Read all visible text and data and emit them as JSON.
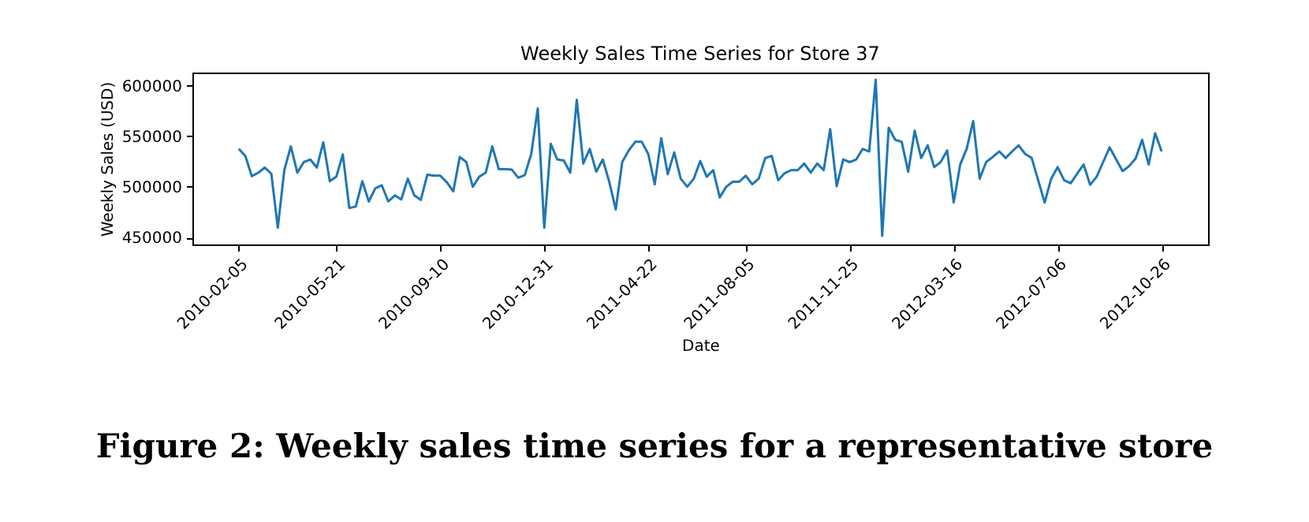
{
  "chart_data": {
    "type": "line",
    "title": "Weekly Sales Time Series for Store 37",
    "xlabel": "Date",
    "ylabel": "Weekly Sales (USD)",
    "annotations": [
      "Figure 2: Weekly sales time series for a representative store"
    ],
    "x": [
      "2010-02-05",
      "2010-02-12",
      "2010-02-19",
      "2010-02-26",
      "2010-03-05",
      "2010-03-12",
      "2010-03-19",
      "2010-03-26",
      "2010-04-02",
      "2010-04-09",
      "2010-04-16",
      "2010-04-23",
      "2010-04-30",
      "2010-05-07",
      "2010-05-14",
      "2010-05-21",
      "2010-05-28",
      "2010-06-04",
      "2010-06-11",
      "2010-06-18",
      "2010-06-25",
      "2010-07-02",
      "2010-07-09",
      "2010-07-16",
      "2010-07-23",
      "2010-07-30",
      "2010-08-06",
      "2010-08-13",
      "2010-08-20",
      "2010-08-27",
      "2010-09-03",
      "2010-09-10",
      "2010-09-17",
      "2010-09-24",
      "2010-10-01",
      "2010-10-08",
      "2010-10-15",
      "2010-10-22",
      "2010-10-29",
      "2010-11-05",
      "2010-11-12",
      "2010-11-19",
      "2010-11-26",
      "2010-12-03",
      "2010-12-10",
      "2010-12-17",
      "2010-12-24",
      "2010-12-31",
      "2011-01-07",
      "2011-01-14",
      "2011-01-21",
      "2011-01-28",
      "2011-02-04",
      "2011-02-11",
      "2011-02-18",
      "2011-02-25",
      "2011-03-04",
      "2011-03-11",
      "2011-03-18",
      "2011-03-25",
      "2011-04-01",
      "2011-04-08",
      "2011-04-15",
      "2011-04-22",
      "2011-04-29",
      "2011-05-06",
      "2011-05-13",
      "2011-05-20",
      "2011-05-27",
      "2011-06-03",
      "2011-06-10",
      "2011-06-17",
      "2011-06-24",
      "2011-07-01",
      "2011-07-08",
      "2011-07-15",
      "2011-07-22",
      "2011-07-29",
      "2011-08-05",
      "2011-08-12",
      "2011-08-19",
      "2011-08-26",
      "2011-09-02",
      "2011-09-09",
      "2011-09-16",
      "2011-09-23",
      "2011-09-30",
      "2011-10-07",
      "2011-10-14",
      "2011-10-21",
      "2011-10-28",
      "2011-11-04",
      "2011-11-11",
      "2011-11-18",
      "2011-11-25",
      "2011-12-02",
      "2011-12-09",
      "2011-12-16",
      "2011-12-23",
      "2011-12-30",
      "2012-01-06",
      "2012-01-13",
      "2012-01-20",
      "2012-01-27",
      "2012-02-03",
      "2012-02-10",
      "2012-02-17",
      "2012-02-24",
      "2012-03-02",
      "2012-03-09",
      "2012-03-16",
      "2012-03-23",
      "2012-03-30",
      "2012-04-06",
      "2012-04-13",
      "2012-04-20",
      "2012-04-27",
      "2012-05-04",
      "2012-05-11",
      "2012-05-18",
      "2012-05-25",
      "2012-06-01",
      "2012-06-08",
      "2012-06-15",
      "2012-06-22",
      "2012-06-29",
      "2012-07-06",
      "2012-07-13",
      "2012-07-20",
      "2012-07-27",
      "2012-08-03",
      "2012-08-10",
      "2012-08-17",
      "2012-08-24",
      "2012-08-31",
      "2012-09-07",
      "2012-09-14",
      "2012-09-21",
      "2012-09-28",
      "2012-10-05",
      "2012-10-12",
      "2012-10-19",
      "2012-10-26"
    ],
    "series": [
      {
        "color": "#1f77b4",
        "values": [
          537500,
          530500,
          510500,
          514000,
          519000,
          513000,
          459500,
          516500,
          540000,
          514000,
          524500,
          527000,
          519000,
          544000,
          505500,
          510000,
          532000,
          479000,
          480500,
          505500,
          485500,
          498500,
          501500,
          485500,
          491500,
          487500,
          508000,
          491500,
          487000,
          512000,
          511000,
          511000,
          504500,
          495500,
          529500,
          524500,
          500000,
          510000,
          514000,
          540000,
          517500,
          517500,
          517000,
          509000,
          511500,
          532500,
          577500,
          459500,
          542500,
          527000,
          526000,
          514000,
          586000,
          523000,
          537500,
          515000,
          527000,
          505000,
          477500,
          524500,
          536000,
          544500,
          544500,
          532500,
          502500,
          548000,
          512500,
          534000,
          508000,
          500000,
          508000,
          525500,
          510000,
          516500,
          489500,
          500000,
          505000,
          505000,
          511000,
          502500,
          508000,
          528500,
          530500,
          506500,
          513500,
          516500,
          516500,
          523000,
          514000,
          523000,
          516500,
          557000,
          500500,
          527000,
          524500,
          527000,
          537500,
          535000,
          606000,
          451500,
          558500,
          546500,
          544500,
          515000,
          555500,
          528500,
          541000,
          519500,
          524500,
          536000,
          484500,
          522000,
          537500,
          565000,
          508000,
          524500,
          529500,
          535000,
          528500,
          535000,
          541000,
          532500,
          528500,
          506500,
          484500,
          508000,
          519500,
          506500,
          503500,
          513000,
          522000,
          502000,
          510000,
          524500,
          539000,
          527000,
          515500,
          520500,
          528000,
          546500,
          522000,
          553000,
          535000
        ]
      }
    ],
    "xlim": [
      "2009-12-17",
      "2012-12-15"
    ],
    "xticks": [
      "2010-02-05",
      "2010-05-21",
      "2010-09-10",
      "2010-12-31",
      "2011-04-22",
      "2011-08-05",
      "2011-11-25",
      "2012-03-16",
      "2012-07-06",
      "2012-10-26"
    ],
    "ylim": [
      443000,
      613000
    ],
    "yticks": [
      450000,
      500000,
      550000,
      600000
    ],
    "grid": false
  }
}
